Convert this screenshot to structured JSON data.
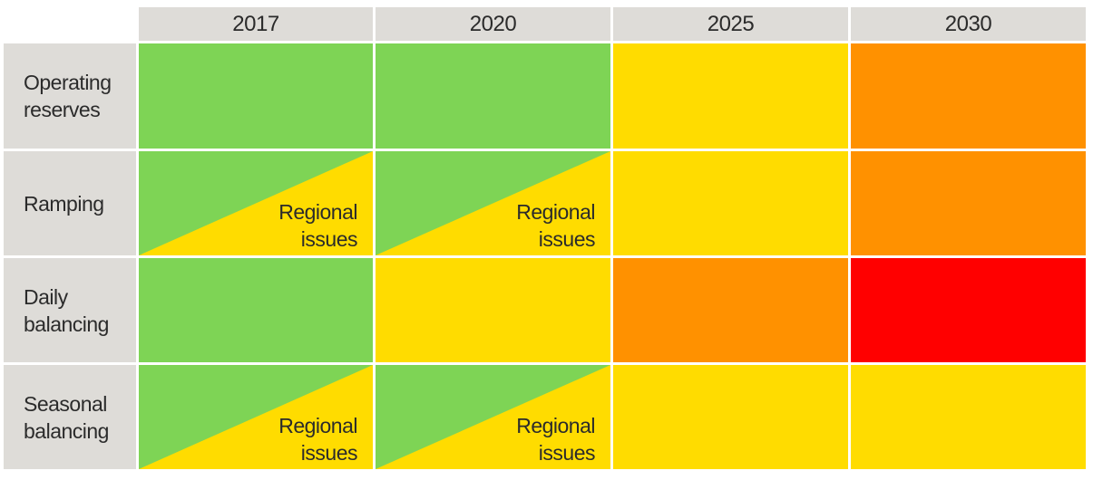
{
  "columns": [
    "2017",
    "2020",
    "2025",
    "2030"
  ],
  "rows": [
    {
      "label_lines": [
        "Operating",
        "reserves"
      ],
      "cells": [
        {
          "fill": "#7ed455"
        },
        {
          "fill": "#7ed455"
        },
        {
          "fill": "#ffdc00"
        },
        {
          "fill": "#ff9100"
        }
      ]
    },
    {
      "label_lines": [
        "Ramping"
      ],
      "cells": [
        {
          "upper_fill": "#7ed455",
          "lower_fill": "#ffdc00",
          "note_lines": [
            "Regional",
            "issues"
          ]
        },
        {
          "upper_fill": "#7ed455",
          "lower_fill": "#ffdc00",
          "note_lines": [
            "Regional",
            "issues"
          ]
        },
        {
          "fill": "#ffdc00"
        },
        {
          "fill": "#ff9100"
        }
      ]
    },
    {
      "label_lines": [
        "Daily",
        "balancing"
      ],
      "cells": [
        {
          "fill": "#7ed455"
        },
        {
          "fill": "#ffdc00"
        },
        {
          "fill": "#ff9100"
        },
        {
          "fill": "#ff0000"
        }
      ]
    },
    {
      "label_lines": [
        "Seasonal",
        "balancing"
      ],
      "cells": [
        {
          "upper_fill": "#7ed455",
          "lower_fill": "#ffdc00",
          "note_lines": [
            "Regional",
            "issues"
          ]
        },
        {
          "upper_fill": "#7ed455",
          "lower_fill": "#ffdc00",
          "note_lines": [
            "Regional",
            "issues"
          ]
        },
        {
          "fill": "#ffdc00"
        },
        {
          "fill": "#ffdc00"
        }
      ]
    }
  ],
  "colors": {
    "header_bg": "#dedcd8",
    "text": "#2b2b2b"
  }
}
